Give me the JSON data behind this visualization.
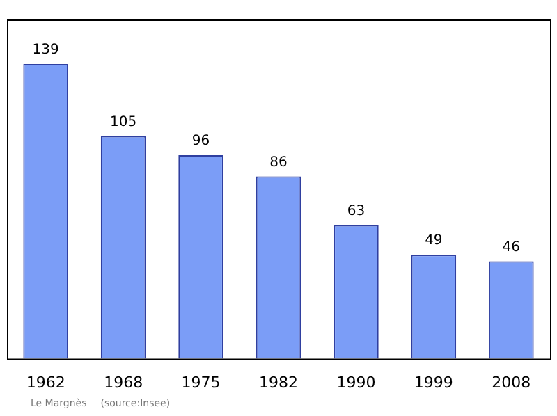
{
  "chart_data": {
    "type": "bar",
    "categories": [
      "1962",
      "1968",
      "1975",
      "1982",
      "1990",
      "1999",
      "2008"
    ],
    "values": [
      139,
      105,
      96,
      86,
      63,
      49,
      46
    ],
    "color": "#7b9df7",
    "data_labels": true,
    "grid": false,
    "legend": false,
    "annotations": [
      "Le Margnès",
      "(source:Insee)"
    ]
  }
}
